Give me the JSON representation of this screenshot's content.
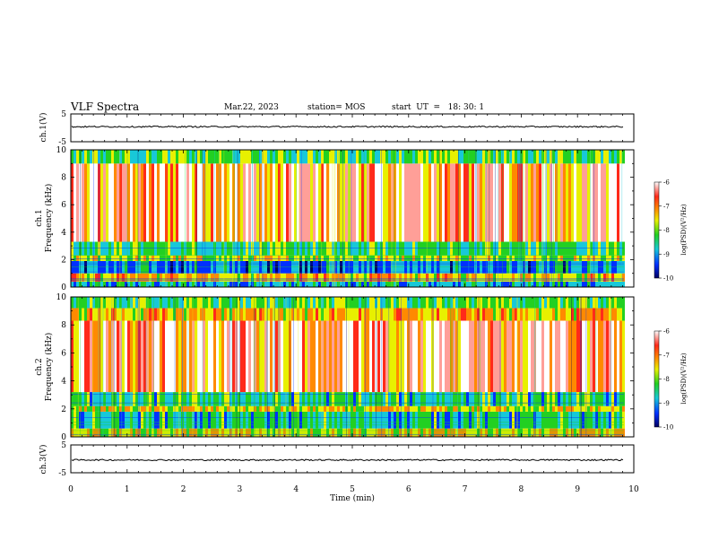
{
  "header": {
    "title": "VLF Spectra",
    "date": "Mar.22, 2023",
    "station": "station= MOS",
    "start": "start  UT  =   18: 30: 1"
  },
  "chart_data": [
    {
      "type": "line",
      "panel": "ch1-waveform",
      "ylabel": "ch.1(V)",
      "ylim": [
        -5,
        5
      ],
      "yticks": [
        "5",
        "-5"
      ],
      "xlim": [
        0,
        10
      ],
      "approx_level": 0.4
    },
    {
      "type": "heatmap",
      "panel": "ch1-spectrogram",
      "ylabel_line1": "ch.1",
      "ylabel_line2": "Frequency (kHz)",
      "ylim": [
        0,
        10
      ],
      "yticks": [
        "0",
        "2",
        "4",
        "6",
        "8",
        "10"
      ],
      "xlim": [
        0,
        10
      ],
      "data_end_min": 9.82,
      "colorbar": {
        "label": "log(PSD)(V²/Hz)",
        "ticks": [
          "-6",
          "-7",
          "-8",
          "-9",
          "-10"
        ],
        "range": [
          -10,
          -6
        ]
      },
      "bands_khz": [
        {
          "from": 0.0,
          "to": 0.4,
          "level": -8.7
        },
        {
          "from": 0.4,
          "to": 1.0,
          "level": -7.0
        },
        {
          "from": 1.0,
          "to": 1.9,
          "level": -9.0
        },
        {
          "from": 1.9,
          "to": 2.3,
          "level": -7.5
        },
        {
          "from": 2.3,
          "to": 3.3,
          "level": -8.2
        },
        {
          "from": 3.3,
          "to": 9.0,
          "level": -6.7
        },
        {
          "from": 9.0,
          "to": 10.0,
          "level": -8.0
        }
      ]
    },
    {
      "type": "heatmap",
      "panel": "ch2-spectrogram",
      "ylabel_line1": "ch.2",
      "ylabel_line2": "Frequency (kHz)",
      "ylim": [
        0,
        10
      ],
      "yticks": [
        "0",
        "2",
        "4",
        "6",
        "8",
        "10"
      ],
      "xlim": [
        0,
        10
      ],
      "data_end_min": 9.82,
      "colorbar": {
        "label": "log(PSD)(V²/Hz)",
        "ticks": [
          "-6",
          "-7",
          "-8",
          "-9",
          "-10"
        ],
        "range": [
          -10,
          -6
        ]
      },
      "bands_khz": [
        {
          "from": 0.0,
          "to": 0.6,
          "level": -7.2
        },
        {
          "from": 0.6,
          "to": 1.8,
          "level": -8.4
        },
        {
          "from": 1.8,
          "to": 2.2,
          "level": -7.3
        },
        {
          "from": 2.2,
          "to": 3.2,
          "level": -8.3
        },
        {
          "from": 3.2,
          "to": 8.3,
          "level": -6.6
        },
        {
          "from": 8.3,
          "to": 9.2,
          "level": -7.0
        },
        {
          "from": 9.2,
          "to": 10.0,
          "level": -8.0
        }
      ]
    },
    {
      "type": "line",
      "panel": "ch3-waveform",
      "ylabel": "ch.3(V)",
      "ylim": [
        -5,
        5
      ],
      "yticks": [
        "5",
        "-5"
      ],
      "xlim": [
        0,
        10
      ],
      "approx_level": -0.4
    }
  ],
  "xaxis": {
    "label": "Time (min)",
    "ticks": [
      "0",
      "1",
      "2",
      "3",
      "4",
      "5",
      "6",
      "7",
      "8",
      "9",
      "10"
    ]
  },
  "colors": {
    "red": "#ff2a1a",
    "orange": "#ff8a00",
    "yellow": "#e8f000",
    "green": "#22d022",
    "cyan": "#18c8d8",
    "blue": "#0030ff",
    "navy": "#000060"
  }
}
